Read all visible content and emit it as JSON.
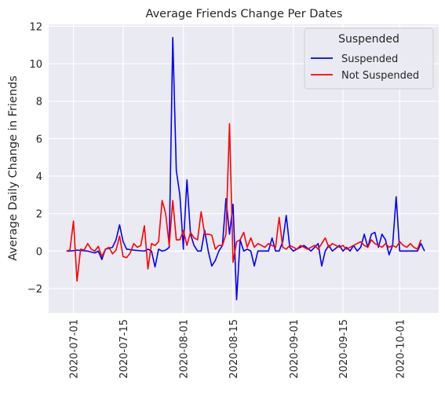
{
  "chart_data": {
    "type": "line",
    "title": "Average Friends Change Per Dates",
    "xlabel": "",
    "ylabel": "Average Daily Change in Friends",
    "x_tick_labels": [
      "2020-07-01",
      "2020-07-15",
      "2020-08-01",
      "2020-08-15",
      "2020-09-01",
      "2020-09-15",
      "2020-10-01"
    ],
    "y_tick_labels": [
      "−2",
      "0",
      "2",
      "4",
      "6",
      "8",
      "10",
      "12"
    ],
    "y_ticks": [
      -2,
      0,
      2,
      4,
      6,
      8,
      10,
      12
    ],
    "x_tick_dates": [
      "2020-07-01",
      "2020-07-15",
      "2020-08-01",
      "2020-08-15",
      "2020-09-01",
      "2020-09-15",
      "2020-10-01"
    ],
    "xlim": [
      "2020-06-24",
      "2020-10-12"
    ],
    "ylim": [
      -3.3,
      12.1
    ],
    "grid": true,
    "legend": {
      "title": "Suspended",
      "placement": "top-right"
    },
    "colors": {
      "background": "#eaeaf2",
      "grid": "#ffffff"
    },
    "series": [
      {
        "name": "Suspended",
        "color": "#0000ff",
        "points": [
          [
            "2020-06-29",
            0.0
          ],
          [
            "2020-06-30",
            0.0
          ],
          [
            "2020-07-02",
            0.05
          ],
          [
            "2020-07-05",
            0.0
          ],
          [
            "2020-07-07",
            -0.1
          ],
          [
            "2020-07-08",
            0.0
          ],
          [
            "2020-07-09",
            -0.45
          ],
          [
            "2020-07-10",
            0.1
          ],
          [
            "2020-07-12",
            0.2
          ],
          [
            "2020-07-13",
            0.6
          ],
          [
            "2020-07-14",
            1.4
          ],
          [
            "2020-07-15",
            0.5
          ],
          [
            "2020-07-16",
            0.1
          ],
          [
            "2020-07-18",
            0.05
          ],
          [
            "2020-07-21",
            0.0
          ],
          [
            "2020-07-22",
            0.1
          ],
          [
            "2020-07-23",
            0.0
          ],
          [
            "2020-07-24",
            -0.85
          ],
          [
            "2020-07-25",
            0.1
          ],
          [
            "2020-07-26",
            0.0
          ],
          [
            "2020-07-27",
            0.05
          ],
          [
            "2020-07-28",
            0.2
          ],
          [
            "2020-07-29",
            11.4
          ],
          [
            "2020-07-30",
            4.3
          ],
          [
            "2020-07-31",
            3.0
          ],
          [
            "2020-08-01",
            0.1
          ],
          [
            "2020-08-01",
            0.3
          ],
          [
            "2020-08-02",
            3.8
          ],
          [
            "2020-08-03",
            0.9
          ],
          [
            "2020-08-04",
            0.3
          ],
          [
            "2020-08-05",
            0.0
          ],
          [
            "2020-08-06",
            0.0
          ],
          [
            "2020-08-07",
            1.1
          ],
          [
            "2020-08-08",
            0.0
          ],
          [
            "2020-08-09",
            -0.8
          ],
          [
            "2020-08-10",
            -0.5
          ],
          [
            "2020-08-11",
            0.0
          ],
          [
            "2020-08-12",
            0.3
          ],
          [
            "2020-08-13",
            2.8
          ],
          [
            "2020-08-14",
            0.9
          ],
          [
            "2020-08-15",
            2.5
          ],
          [
            "2020-08-16",
            -2.6
          ],
          [
            "2020-08-17",
            0.6
          ],
          [
            "2020-08-18",
            0.0
          ],
          [
            "2020-08-19",
            0.1
          ],
          [
            "2020-08-20",
            0.0
          ],
          [
            "2020-08-21",
            -0.8
          ],
          [
            "2020-08-22",
            0.0
          ],
          [
            "2020-08-23",
            0.0
          ],
          [
            "2020-08-24",
            0.0
          ],
          [
            "2020-08-25",
            0.0
          ],
          [
            "2020-08-26",
            0.7
          ],
          [
            "2020-08-27",
            0.0
          ],
          [
            "2020-08-28",
            0.0
          ],
          [
            "2020-08-29",
            0.5
          ],
          [
            "2020-08-30",
            1.9
          ],
          [
            "2020-08-31",
            0.2
          ],
          [
            "2020-09-01",
            0.0
          ],
          [
            "2020-09-02",
            0.1
          ],
          [
            "2020-09-04",
            0.3
          ],
          [
            "2020-09-06",
            0.0
          ],
          [
            "2020-09-08",
            0.4
          ],
          [
            "2020-09-09",
            -0.8
          ],
          [
            "2020-09-10",
            0.0
          ],
          [
            "2020-09-11",
            0.3
          ],
          [
            "2020-09-12",
            0.0
          ],
          [
            "2020-09-14",
            0.3
          ],
          [
            "2020-09-15",
            0.0
          ],
          [
            "2020-09-16",
            0.2
          ],
          [
            "2020-09-17",
            0.0
          ],
          [
            "2020-09-18",
            0.3
          ],
          [
            "2020-09-19",
            0.0
          ],
          [
            "2020-09-20",
            0.2
          ],
          [
            "2020-09-21",
            0.9
          ],
          [
            "2020-09-22",
            0.2
          ],
          [
            "2020-09-23",
            0.9
          ],
          [
            "2020-09-24",
            1.0
          ],
          [
            "2020-09-25",
            0.2
          ],
          [
            "2020-09-26",
            0.9
          ],
          [
            "2020-09-27",
            0.6
          ],
          [
            "2020-09-28",
            -0.2
          ],
          [
            "2020-09-29",
            0.3
          ],
          [
            "2020-09-30",
            2.9
          ],
          [
            "2020-10-01",
            0.0
          ],
          [
            "2020-10-02",
            0.0
          ],
          [
            "2020-10-03",
            0.0
          ],
          [
            "2020-10-04",
            0.0
          ],
          [
            "2020-10-05",
            0.0
          ],
          [
            "2020-10-06",
            0.0
          ],
          [
            "2020-10-07",
            0.4
          ],
          [
            "2020-10-08",
            0.0
          ]
        ]
      },
      {
        "name": "Not Suspended",
        "color": "#ff0000",
        "points": [
          [
            "2020-06-29",
            0.0
          ],
          [
            "2020-06-30",
            0.05
          ],
          [
            "2020-07-01",
            1.6
          ],
          [
            "2020-07-02",
            -1.6
          ],
          [
            "2020-07-03",
            0.1
          ],
          [
            "2020-07-04",
            0.05
          ],
          [
            "2020-07-05",
            0.4
          ],
          [
            "2020-07-06",
            0.1
          ],
          [
            "2020-07-07",
            0.0
          ],
          [
            "2020-07-08",
            0.25
          ],
          [
            "2020-07-09",
            -0.3
          ],
          [
            "2020-07-10",
            0.1
          ],
          [
            "2020-07-11",
            0.2
          ],
          [
            "2020-07-12",
            -0.15
          ],
          [
            "2020-07-13",
            0.05
          ],
          [
            "2020-07-14",
            0.8
          ],
          [
            "2020-07-15",
            -0.3
          ],
          [
            "2020-07-16",
            -0.35
          ],
          [
            "2020-07-17",
            -0.1
          ],
          [
            "2020-07-18",
            0.4
          ],
          [
            "2020-07-19",
            0.2
          ],
          [
            "2020-07-20",
            0.3
          ],
          [
            "2020-07-21",
            1.35
          ],
          [
            "2020-07-22",
            -0.95
          ],
          [
            "2020-07-23",
            0.4
          ],
          [
            "2020-07-24",
            0.3
          ],
          [
            "2020-07-25",
            0.5
          ],
          [
            "2020-07-26",
            2.7
          ],
          [
            "2020-07-27",
            2.0
          ],
          [
            "2020-07-28",
            0.3
          ],
          [
            "2020-07-29",
            2.7
          ],
          [
            "2020-07-30",
            0.6
          ],
          [
            "2020-07-31",
            0.6
          ],
          [
            "2020-08-01",
            1.1
          ],
          [
            "2020-08-02",
            0.3
          ],
          [
            "2020-08-03",
            1.0
          ],
          [
            "2020-08-04",
            0.7
          ],
          [
            "2020-08-05",
            0.6
          ],
          [
            "2020-08-06",
            2.1
          ],
          [
            "2020-08-07",
            0.9
          ],
          [
            "2020-08-08",
            0.9
          ],
          [
            "2020-08-09",
            0.85
          ],
          [
            "2020-08-10",
            0.1
          ],
          [
            "2020-08-11",
            0.3
          ],
          [
            "2020-08-12",
            0.3
          ],
          [
            "2020-08-13",
            0.9
          ],
          [
            "2020-08-14",
            6.8
          ],
          [
            "2020-08-15",
            -0.6
          ],
          [
            "2020-08-16",
            0.5
          ],
          [
            "2020-08-17",
            0.6
          ],
          [
            "2020-08-18",
            1.0
          ],
          [
            "2020-08-19",
            0.2
          ],
          [
            "2020-08-20",
            0.7
          ],
          [
            "2020-08-21",
            0.2
          ],
          [
            "2020-08-22",
            0.4
          ],
          [
            "2020-08-23",
            0.3
          ],
          [
            "2020-08-24",
            0.2
          ],
          [
            "2020-08-25",
            0.4
          ],
          [
            "2020-08-26",
            0.3
          ],
          [
            "2020-08-27",
            0.2
          ],
          [
            "2020-08-28",
            1.8
          ],
          [
            "2020-08-29",
            0.2
          ],
          [
            "2020-08-30",
            0.1
          ],
          [
            "2020-08-31",
            0.3
          ],
          [
            "2020-09-01",
            0.2
          ],
          [
            "2020-09-02",
            0.1
          ],
          [
            "2020-09-03",
            0.3
          ],
          [
            "2020-09-04",
            0.2
          ],
          [
            "2020-09-05",
            0.1
          ],
          [
            "2020-09-06",
            0.2
          ],
          [
            "2020-09-07",
            0.3
          ],
          [
            "2020-09-08",
            0.1
          ],
          [
            "2020-09-09",
            0.4
          ],
          [
            "2020-09-10",
            0.7
          ],
          [
            "2020-09-11",
            0.2
          ],
          [
            "2020-09-12",
            0.4
          ],
          [
            "2020-09-13",
            0.3
          ],
          [
            "2020-09-14",
            0.2
          ],
          [
            "2020-09-15",
            0.3
          ],
          [
            "2020-09-16",
            0.1
          ],
          [
            "2020-09-17",
            0.2
          ],
          [
            "2020-09-18",
            0.3
          ],
          [
            "2020-09-19",
            0.4
          ],
          [
            "2020-09-20",
            0.5
          ],
          [
            "2020-09-21",
            0.3
          ],
          [
            "2020-09-22",
            0.2
          ],
          [
            "2020-09-23",
            0.6
          ],
          [
            "2020-09-24",
            0.4
          ],
          [
            "2020-09-25",
            0.3
          ],
          [
            "2020-09-26",
            0.2
          ],
          [
            "2020-09-27",
            0.4
          ],
          [
            "2020-09-28",
            0.2
          ],
          [
            "2020-09-29",
            0.3
          ],
          [
            "2020-09-30",
            0.2
          ],
          [
            "2020-10-01",
            0.5
          ],
          [
            "2020-10-02",
            0.3
          ],
          [
            "2020-10-03",
            0.2
          ],
          [
            "2020-10-04",
            0.4
          ],
          [
            "2020-10-05",
            0.2
          ],
          [
            "2020-10-06",
            0.1
          ],
          [
            "2020-10-07",
            0.6
          ]
        ]
      }
    ]
  }
}
